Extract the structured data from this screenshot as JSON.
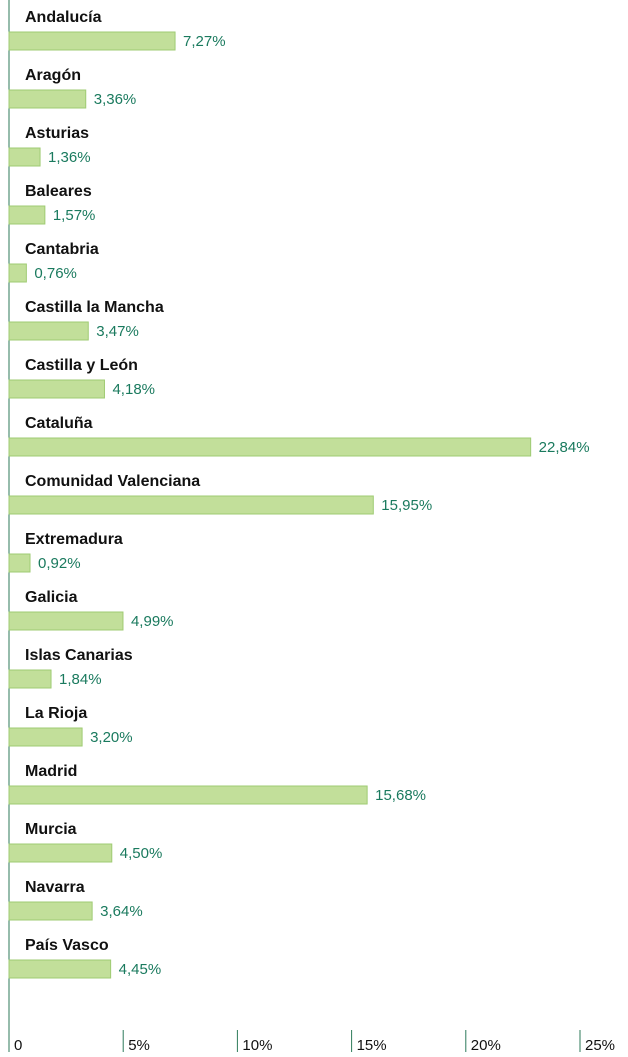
{
  "chart_data": {
    "type": "bar",
    "orientation": "horizontal",
    "categories": [
      "Andalucía",
      "Aragón",
      "Asturias",
      "Baleares",
      "Cantabria",
      "Castilla la Mancha",
      "Castilla y León",
      "Cataluña",
      "Comunidad Valenciana",
      "Extremadura",
      "Galicia",
      "Islas Canarias",
      "La Rioja",
      "Madrid",
      "Murcia",
      "Navarra",
      "País Vasco"
    ],
    "values": [
      7.27,
      3.36,
      1.36,
      1.57,
      0.76,
      3.47,
      4.18,
      22.84,
      15.95,
      0.92,
      4.99,
      1.84,
      3.2,
      15.68,
      4.5,
      3.64,
      4.45
    ],
    "value_labels": [
      "7,27%",
      "3,36%",
      "1,36%",
      "1,57%",
      "0,76%",
      "3,47%",
      "4,18%",
      "22,84%",
      "15,95%",
      "0,92%",
      "4,99%",
      "1,84%",
      "3,20%",
      "15,68%",
      "4,50%",
      "3,64%",
      "4,45%"
    ],
    "color": "#c2df9a",
    "xlim": [
      0,
      25
    ],
    "xticks": [
      0,
      {
        "value": 5,
        "label": "5%"
      },
      {
        "value": 10,
        "label": "10%"
      },
      {
        "value": 15,
        "label": "15%"
      },
      {
        "value": 20,
        "label": "20%"
      },
      {
        "value": 25,
        "label": "25%"
      }
    ]
  }
}
